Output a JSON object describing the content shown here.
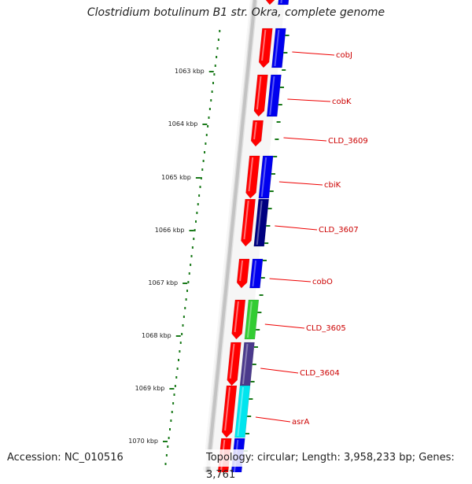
{
  "title": "Clostridium botulinum B1 str. Okra, complete genome",
  "footer": {
    "accession": "Accession: NC_010516",
    "summary": "Topology: circular; Length: 3,958,233 bp; Genes: 3,761"
  },
  "colors": {
    "backbone": "#8c8c8c",
    "ticks": "#1a7a1a",
    "forward_strand": "#ff0000",
    "label_text": "#cc0000",
    "label_line": "#ee0000"
  },
  "ruler": [
    {
      "label": "1063 kbp"
    },
    {
      "label": "1064 kbp"
    },
    {
      "label": "1065 kbp"
    },
    {
      "label": "1066 kbp"
    },
    {
      "label": "1067 kbp"
    },
    {
      "label": "1068 kbp"
    },
    {
      "label": "1069 kbp"
    },
    {
      "label": "1070 kbp"
    }
  ],
  "features": [
    {
      "name": "cobJ",
      "color": "#0000ee"
    },
    {
      "name": "cobK",
      "color": "#0000ee"
    },
    {
      "name": "CLD_3609",
      "color": ""
    },
    {
      "name": "cbiK",
      "color": "#0000ee"
    },
    {
      "name": "CLD_3607",
      "color": "#000080"
    },
    {
      "name": "cobO",
      "color": "#0000ee"
    },
    {
      "name": "CLD_3605",
      "color": "#33cc33"
    },
    {
      "name": "CLD_3604",
      "color": "#4b3a8c"
    },
    {
      "name": "asrA",
      "color": "#00e5ee"
    }
  ]
}
